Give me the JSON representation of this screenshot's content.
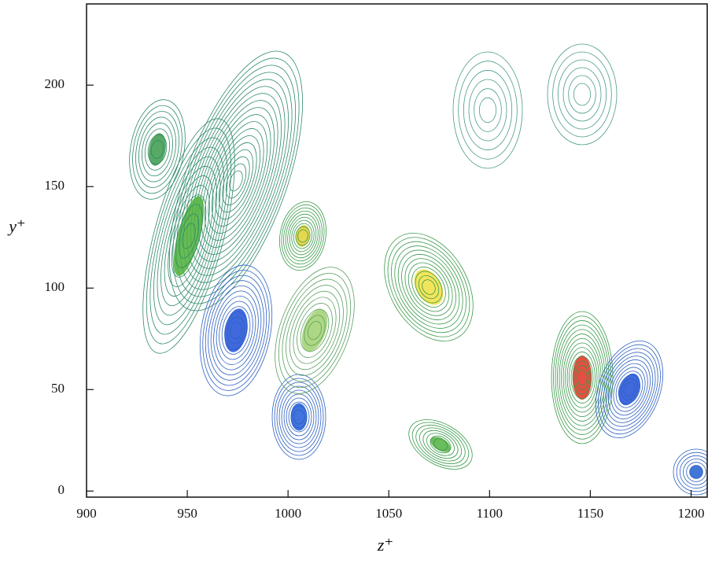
{
  "chart_data": {
    "type": "contour",
    "x_label": "z⁺",
    "y_label": "y⁺",
    "xlim": [
      900,
      1208
    ],
    "xticks": [
      900,
      950,
      1000,
      1050,
      1100,
      1150,
      1200
    ],
    "ylim": [
      -3,
      240
    ],
    "yticks": [
      0,
      50,
      100,
      150,
      200
    ]
  }
}
